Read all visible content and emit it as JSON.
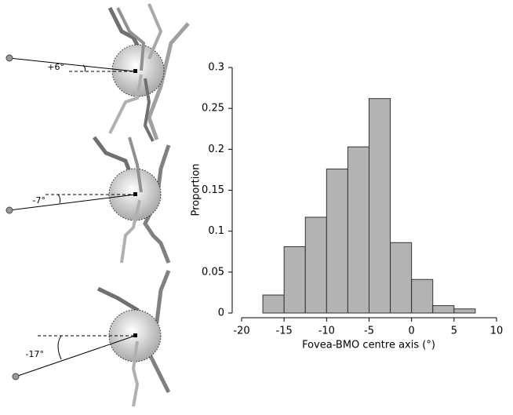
{
  "chart_data": {
    "type": "histogram",
    "xlabel": "Fovea-BMO centre axis (°)",
    "ylabel": "Proportion",
    "bins": [
      -17.5,
      -15,
      -12.5,
      -10,
      -7.5,
      -5,
      -2.5,
      0,
      2.5,
      5,
      7.5
    ],
    "values": [
      0.022,
      0.081,
      0.117,
      0.176,
      0.203,
      0.262,
      0.086,
      0.041,
      0.009,
      0.005
    ],
    "color": "#b3b3b3",
    "xlim": [
      -20,
      10
    ],
    "xticks": [
      -20,
      -15,
      -10,
      -5,
      0,
      5,
      10
    ],
    "ylim": [
      0,
      0.3
    ],
    "yticks": [
      0,
      0.05,
      0.1,
      0.15,
      0.2,
      0.25,
      0.3
    ],
    "annotations": [
      "+6°",
      "-7°",
      "-17°"
    ]
  }
}
